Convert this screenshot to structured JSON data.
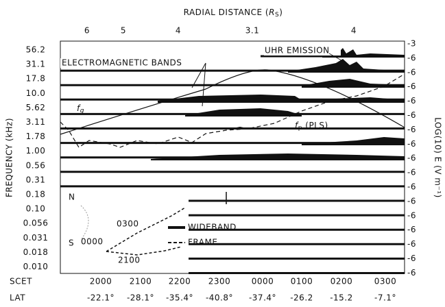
{
  "top_axis": {
    "title_prefix": "RADIAL DISTANCE (",
    "symbol": "R",
    "subscript": "S",
    "title_suffix": ")",
    "labels": [
      "6",
      "5",
      "4",
      "3.1",
      "4"
    ]
  },
  "left_axis": {
    "title": "FREQUENCY (kHz)",
    "labels": [
      "56.2",
      "31.1",
      "17.8",
      "10.0",
      "5.62",
      "3.11",
      "1.78",
      "1.00",
      "0.56",
      "0.31",
      "0.18",
      "0.10",
      "0.056",
      "0.031",
      "0.018",
      "0.010"
    ]
  },
  "right_axis": {
    "title": "LOG(10) E (V m⁻¹)",
    "labels": [
      "-3",
      "-6",
      "-6",
      "-6",
      "-6",
      "-6",
      "-6",
      "-6",
      "-6",
      "-6",
      "-6",
      "-6",
      "-6",
      "-6",
      "-6",
      "-6",
      "-6"
    ]
  },
  "bottom_axis": {
    "scet_title": "SCET",
    "scet": [
      "2000",
      "2100",
      "2200",
      "2300",
      "0000",
      "0100",
      "0200",
      "0300"
    ],
    "lat_title": "LAT",
    "lat": [
      "-22.1°",
      "-28.1°",
      "-35.4°",
      "-40.8°",
      "-37.4°",
      "-26.2",
      "-15.2",
      "-7.1°"
    ]
  },
  "annotations": {
    "uhr": "UHR EMISSION",
    "em_bands": "ELECTROMAGNETIC BANDS",
    "fg_symbol": "f",
    "fg_sub": "g",
    "fp_symbol": "f",
    "fp_sub": "p",
    "fp_suffix": " (PLS)"
  },
  "inset": {
    "north": "N",
    "south": "S",
    "t0300": "0300",
    "t0000": "0000",
    "t2100": "2100",
    "wideband": "WIDEBAND",
    "frame": "FRAME"
  }
}
